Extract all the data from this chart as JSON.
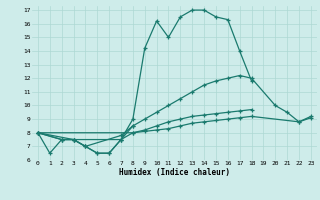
{
  "title": "",
  "xlabel": "Humidex (Indice chaleur)",
  "background_color": "#ceecea",
  "grid_color": "#aed8d4",
  "line_color": "#1a7a6e",
  "xlim": [
    -0.5,
    23.5
  ],
  "ylim": [
    6,
    17.3
  ],
  "xticks": [
    0,
    1,
    2,
    3,
    4,
    5,
    6,
    7,
    8,
    9,
    10,
    11,
    12,
    13,
    14,
    15,
    16,
    17,
    18,
    19,
    20,
    21,
    22,
    23
  ],
  "yticks": [
    6,
    7,
    8,
    9,
    10,
    11,
    12,
    13,
    14,
    15,
    16,
    17
  ],
  "lines": [
    {
      "x": [
        0,
        1,
        2,
        3,
        4,
        5,
        6,
        7,
        8,
        9,
        10,
        11,
        12,
        13,
        14,
        15,
        16,
        17,
        18
      ],
      "y": [
        8.0,
        6.5,
        7.5,
        7.5,
        7.0,
        6.5,
        6.5,
        7.5,
        9.0,
        14.2,
        16.2,
        15.0,
        16.5,
        17.0,
        17.0,
        16.5,
        16.3,
        14.0,
        11.8
      ]
    },
    {
      "x": [
        0,
        2,
        3,
        4,
        5,
        6,
        7,
        8
      ],
      "y": [
        8.0,
        7.5,
        7.5,
        7.0,
        6.5,
        6.5,
        7.5,
        8.5
      ]
    },
    {
      "x": [
        0,
        2,
        3,
        4,
        7,
        8,
        9,
        10,
        11,
        12,
        13,
        14,
        15,
        16,
        17,
        18,
        20,
        21,
        22,
        23
      ],
      "y": [
        8.0,
        7.5,
        7.5,
        7.0,
        7.8,
        8.5,
        9.0,
        9.5,
        10.0,
        10.5,
        11.0,
        11.5,
        11.8,
        12.0,
        12.2,
        12.0,
        10.0,
        9.5,
        8.8,
        9.2
      ]
    },
    {
      "x": [
        0,
        3,
        7,
        8,
        9,
        10,
        11,
        12,
        13,
        14,
        15,
        16,
        17,
        18
      ],
      "y": [
        8.0,
        7.5,
        7.5,
        8.0,
        8.2,
        8.5,
        8.8,
        9.0,
        9.2,
        9.3,
        9.4,
        9.5,
        9.6,
        9.7
      ]
    },
    {
      "x": [
        0,
        8,
        9,
        10,
        11,
        12,
        13,
        14,
        15,
        16,
        17,
        18,
        22,
        23
      ],
      "y": [
        8.0,
        8.0,
        8.1,
        8.2,
        8.3,
        8.5,
        8.7,
        8.8,
        8.9,
        9.0,
        9.1,
        9.2,
        8.8,
        9.1
      ]
    }
  ]
}
